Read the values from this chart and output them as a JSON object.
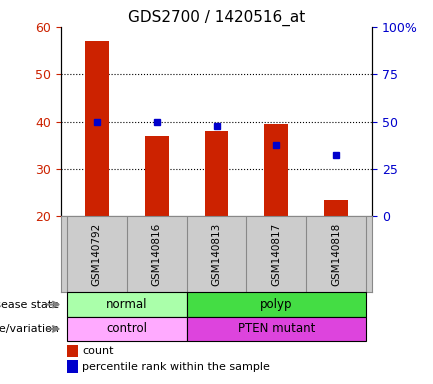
{
  "title": "GDS2700 / 1420516_at",
  "samples": [
    "GSM140792",
    "GSM140816",
    "GSM140813",
    "GSM140817",
    "GSM140818"
  ],
  "bar_values": [
    57.0,
    37.0,
    38.0,
    39.5,
    23.5
  ],
  "dot_values": [
    40.0,
    40.0,
    39.0,
    35.0,
    33.0
  ],
  "ylim_left": [
    20,
    60
  ],
  "ylim_right": [
    0,
    100
  ],
  "yticks_left": [
    20,
    30,
    40,
    50,
    60
  ],
  "yticks_right": [
    0,
    25,
    50,
    75,
    100
  ],
  "yticklabels_right": [
    "0",
    "25",
    "50",
    "75",
    "100%"
  ],
  "bar_color": "#cc2200",
  "dot_color": "#0000cc",
  "disease_normal_color": "#aaffaa",
  "disease_polyp_color": "#44dd44",
  "genotype_control_color": "#ffaaff",
  "genotype_mutant_color": "#dd44dd",
  "label_disease": "disease state",
  "label_genotype": "genotype/variation",
  "legend_count": "count",
  "legend_percentile": "percentile rank within the sample",
  "axis_label_color_left": "#cc2200",
  "axis_label_color_right": "#0000cc",
  "background_color": "#ffffff",
  "xtick_bg_color": "#cccccc",
  "xtick_border_color": "#888888"
}
